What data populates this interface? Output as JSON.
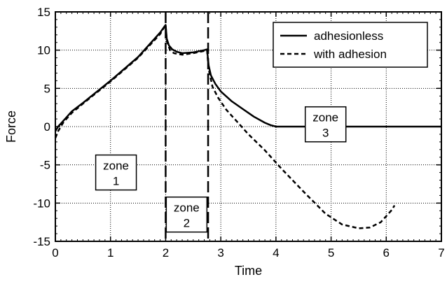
{
  "chart_data": {
    "type": "line",
    "xlabel": "Time",
    "ylabel": "Force",
    "xlim": [
      0,
      7
    ],
    "ylim": [
      -15,
      15
    ],
    "x_ticks": [
      "0",
      "1",
      "2",
      "3",
      "4",
      "5",
      "6",
      "7"
    ],
    "y_ticks": [
      "15",
      "10",
      "5",
      "0",
      "-5",
      "-10",
      "-15"
    ],
    "grid": true,
    "legend_position": "top-right",
    "series": [
      {
        "name": "adhesionless",
        "style": "solid",
        "color": "#000000",
        "points": [
          [
            0,
            -0.6
          ],
          [
            0.05,
            0
          ],
          [
            0.1,
            0.4
          ],
          [
            0.2,
            1.2
          ],
          [
            0.3,
            2.0
          ],
          [
            0.5,
            3.1
          ],
          [
            1.0,
            6.0
          ],
          [
            1.5,
            9.1
          ],
          [
            1.9,
            12.3
          ],
          [
            2.0,
            13.3
          ],
          [
            2.02,
            11.5
          ],
          [
            2.06,
            10.6
          ],
          [
            2.12,
            10.1
          ],
          [
            2.2,
            9.8
          ],
          [
            2.3,
            9.6
          ],
          [
            2.5,
            9.7
          ],
          [
            2.7,
            10.0
          ],
          [
            2.75,
            10.1
          ],
          [
            2.78,
            8.0
          ],
          [
            2.82,
            6.7
          ],
          [
            2.9,
            5.6
          ],
          [
            3.0,
            4.6
          ],
          [
            3.2,
            3.3
          ],
          [
            3.4,
            2.3
          ],
          [
            3.6,
            1.3
          ],
          [
            3.8,
            0.5
          ],
          [
            3.9,
            0.2
          ],
          [
            4.0,
            0
          ],
          [
            7.0,
            0
          ]
        ]
      },
      {
        "name": "with adhesion",
        "style": "dashed",
        "color": "#000000",
        "points": [
          [
            0,
            -1.5
          ],
          [
            0.05,
            -0.6
          ],
          [
            0.15,
            0.6
          ],
          [
            0.3,
            1.8
          ],
          [
            0.5,
            3.0
          ],
          [
            1.0,
            5.9
          ],
          [
            1.5,
            9.0
          ],
          [
            1.9,
            12.1
          ],
          [
            2.0,
            13.3
          ],
          [
            2.02,
            11.2
          ],
          [
            2.08,
            10.0
          ],
          [
            2.15,
            9.6
          ],
          [
            2.3,
            9.4
          ],
          [
            2.5,
            9.6
          ],
          [
            2.7,
            9.9
          ],
          [
            2.75,
            10.0
          ],
          [
            2.78,
            7.5
          ],
          [
            2.85,
            5.2
          ],
          [
            2.95,
            3.8
          ],
          [
            3.1,
            2.2
          ],
          [
            3.3,
            0.6
          ],
          [
            3.5,
            -1.0
          ],
          [
            3.8,
            -3.1
          ],
          [
            4.1,
            -5.5
          ],
          [
            4.5,
            -8.5
          ],
          [
            4.9,
            -11.4
          ],
          [
            5.2,
            -12.8
          ],
          [
            5.5,
            -13.3
          ],
          [
            5.7,
            -13.2
          ],
          [
            5.9,
            -12.5
          ],
          [
            6.1,
            -10.9
          ],
          [
            6.15,
            -10.3
          ]
        ]
      }
    ],
    "vlines": [
      {
        "x": 2.0,
        "style": "long-dash"
      },
      {
        "x": 2.77,
        "style": "long-dash"
      }
    ],
    "zones": [
      {
        "line1": "zone",
        "line2": "1",
        "x": 1.1,
        "y": -6.0
      },
      {
        "line1": "zone",
        "line2": "2",
        "x": 2.38,
        "y": -11.5
      },
      {
        "line1": "zone",
        "line2": "3",
        "x": 4.9,
        "y": 0.3
      }
    ]
  }
}
